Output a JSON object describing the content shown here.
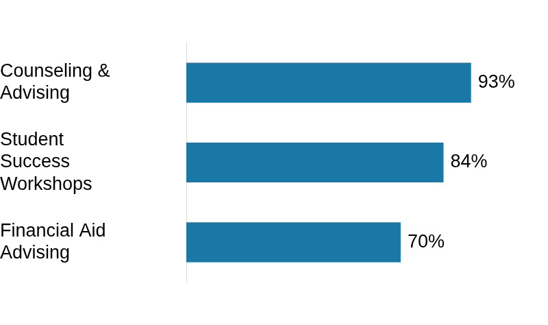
{
  "chart_data": {
    "type": "bar",
    "orientation": "horizontal",
    "categories": [
      "Counseling & Advising",
      "Student Success Workshops",
      "Financial Aid Advising"
    ],
    "values": [
      93,
      84,
      70
    ],
    "value_labels": [
      "93%",
      "84%",
      "70%"
    ],
    "color": "#1a78a6",
    "data_labels": true,
    "tick_labels": "y",
    "grid": false
  }
}
